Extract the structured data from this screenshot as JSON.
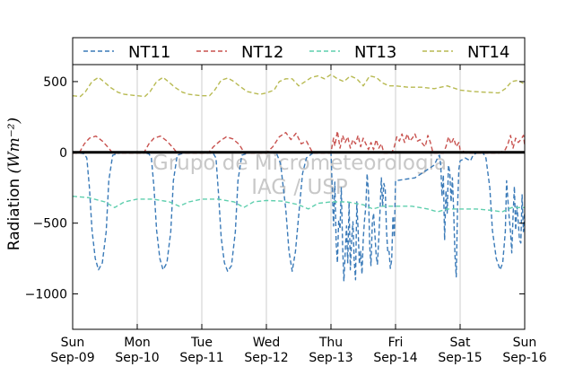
{
  "chart_data": {
    "type": "line",
    "ylabel": "Radiation",
    "ylabel_unit": "(Wm⁻²)",
    "ylim": [
      -1250,
      620
    ],
    "yticks": [
      -1000,
      -500,
      0,
      500
    ],
    "ytick_labels": [
      "−1000",
      "−500",
      "0",
      "500"
    ],
    "xlim": [
      0,
      7
    ],
    "xticks": [
      {
        "day": "Sun",
        "date": "Sep-09"
      },
      {
        "day": "Mon",
        "date": "Sep-10"
      },
      {
        "day": "Tue",
        "date": "Sep-11"
      },
      {
        "day": "Wed",
        "date": "Sep-12"
      },
      {
        "day": "Thu",
        "date": "Sep-13"
      },
      {
        "day": "Fri",
        "date": "Sep-14"
      },
      {
        "day": "Sat",
        "date": "Sep-15"
      },
      {
        "day": "Sun",
        "date": "Sep-16"
      }
    ],
    "grid": "vertical",
    "zero_line": true,
    "legend": {
      "placement": "top",
      "orientation": "horizontal"
    },
    "watermark": [
      "Grupo de Micrometeorologia",
      "IAG / USP"
    ],
    "series": [
      {
        "name": "NT11",
        "color": "#3a7ab8",
        "x": [
          0.0,
          0.08,
          0.18,
          0.22,
          0.26,
          0.3,
          0.35,
          0.4,
          0.46,
          0.52,
          0.56,
          0.62,
          0.72,
          0.8,
          1.0,
          1.08,
          1.18,
          1.22,
          1.26,
          1.3,
          1.35,
          1.4,
          1.46,
          1.52,
          1.56,
          1.62,
          1.72,
          1.8,
          2.0,
          2.08,
          2.18,
          2.22,
          2.26,
          2.3,
          2.35,
          2.4,
          2.46,
          2.52,
          2.56,
          2.62,
          2.72,
          2.8,
          3.0,
          3.08,
          3.16,
          3.22,
          3.3,
          3.35,
          3.4,
          3.45,
          3.52,
          3.56,
          3.62,
          3.72,
          3.8,
          3.9,
          4.0,
          4.04,
          4.06,
          4.08,
          4.1,
          4.12,
          4.14,
          4.16,
          4.18,
          4.2,
          4.22,
          4.24,
          4.26,
          4.28,
          4.3,
          4.32,
          4.34,
          4.36,
          4.38,
          4.4,
          4.42,
          4.44,
          4.46,
          4.48,
          4.5,
          4.52,
          4.54,
          4.56,
          4.58,
          4.6,
          4.62,
          4.64,
          4.66,
          4.68,
          4.7,
          4.72,
          4.74,
          4.76,
          4.78,
          4.8,
          4.82,
          4.84,
          4.86,
          4.88,
          4.9,
          4.92,
          4.94,
          4.96,
          4.98,
          5.0,
          5.3,
          5.6,
          5.65,
          5.66,
          5.68,
          5.7,
          5.72,
          5.74,
          5.76,
          5.78,
          5.8,
          5.82,
          5.84,
          5.86,
          5.88,
          5.9,
          5.92,
          5.94,
          5.96,
          5.98,
          6.0,
          6.08,
          6.16,
          6.2,
          6.25,
          6.3,
          6.35,
          6.4,
          6.46,
          6.5,
          6.56,
          6.62,
          6.66,
          6.7,
          6.72,
          6.74,
          6.76,
          6.78,
          6.8,
          6.82,
          6.84,
          6.86,
          6.88,
          6.9,
          6.92,
          6.94,
          6.96,
          6.98,
          7.0
        ],
        "y": [
          0,
          0,
          -10,
          -40,
          -250,
          -550,
          -750,
          -830,
          -780,
          -560,
          -200,
          -20,
          -5,
          0,
          0,
          0,
          -10,
          -40,
          -250,
          -550,
          -750,
          -830,
          -780,
          -560,
          -200,
          -20,
          -5,
          0,
          0,
          0,
          -10,
          -40,
          -300,
          -600,
          -780,
          -840,
          -800,
          -560,
          -200,
          -20,
          -5,
          0,
          0,
          0,
          -10,
          -80,
          -400,
          -700,
          -840,
          -700,
          -350,
          -150,
          -40,
          -5,
          0,
          0,
          0,
          -520,
          -210,
          -640,
          -780,
          -480,
          -540,
          -250,
          -660,
          -910,
          -720,
          -520,
          -780,
          -350,
          -830,
          -620,
          -490,
          -760,
          -900,
          -350,
          -540,
          -790,
          -700,
          -860,
          -610,
          -480,
          -380,
          -150,
          -280,
          -660,
          -800,
          -500,
          -430,
          -580,
          -730,
          -790,
          -610,
          -410,
          -180,
          -380,
          -220,
          -260,
          -550,
          -710,
          -700,
          -820,
          -760,
          -450,
          -600,
          -200,
          -180,
          -90,
          -40,
          -30,
          -20,
          -90,
          -310,
          -160,
          -620,
          -270,
          -430,
          -90,
          -140,
          -350,
          -180,
          -410,
          -720,
          -880,
          -390,
          -120,
          -60,
          -40,
          -60,
          -20,
          -5,
          0,
          0,
          -40,
          -250,
          -550,
          -750,
          -830,
          -780,
          -560,
          -200,
          -340,
          -460,
          -560,
          -710,
          -450,
          -240,
          -550,
          -380,
          -490,
          -620,
          -640,
          -300,
          -560,
          -420
        ]
      },
      {
        "name": "NT12",
        "color": "#c8524f",
        "x": [
          0.0,
          0.1,
          0.18,
          0.26,
          0.36,
          0.46,
          0.56,
          0.62,
          0.72,
          0.8,
          1.0,
          1.1,
          1.18,
          1.26,
          1.36,
          1.46,
          1.56,
          1.62,
          1.72,
          1.8,
          2.0,
          2.1,
          2.18,
          2.28,
          2.38,
          2.48,
          2.58,
          2.66,
          2.72,
          2.8,
          3.0,
          3.1,
          3.2,
          3.3,
          3.38,
          3.46,
          3.54,
          3.62,
          3.72,
          3.8,
          3.9,
          4.0,
          4.02,
          4.04,
          4.06,
          4.1,
          4.14,
          4.18,
          4.22,
          4.26,
          4.3,
          4.34,
          4.38,
          4.42,
          4.46,
          4.5,
          4.54,
          4.58,
          4.62,
          4.66,
          4.7,
          4.74,
          4.78,
          4.82,
          4.86,
          4.9,
          4.94,
          4.98,
          5.02,
          5.06,
          5.1,
          5.14,
          5.18,
          5.22,
          5.26,
          5.3,
          5.34,
          5.38,
          5.42,
          5.46,
          5.5,
          5.54,
          5.58,
          5.62,
          5.66,
          5.7,
          5.74,
          5.78,
          5.82,
          5.86,
          5.9,
          5.94,
          5.98,
          6.0,
          6.1,
          6.2,
          6.3,
          6.4,
          6.5,
          6.6,
          6.7,
          6.74,
          6.78,
          6.82,
          6.86,
          6.9,
          6.94,
          6.98,
          7.0
        ],
        "y": [
          -5,
          -5,
          60,
          100,
          115,
          80,
          30,
          -5,
          -5,
          -5,
          -5,
          -5,
          60,
          100,
          115,
          80,
          30,
          -5,
          -5,
          -5,
          -5,
          -5,
          40,
          80,
          110,
          95,
          55,
          -5,
          -5,
          -5,
          -5,
          40,
          110,
          140,
          90,
          135,
          60,
          80,
          -5,
          -5,
          -5,
          -5,
          50,
          100,
          45,
          150,
          30,
          120,
          70,
          110,
          30,
          90,
          60,
          120,
          40,
          100,
          60,
          20,
          70,
          20,
          90,
          30,
          60,
          -5,
          -5,
          -5,
          -5,
          40,
          110,
          80,
          130,
          70,
          130,
          80,
          100,
          130,
          80,
          90,
          60,
          40,
          120,
          70,
          -5,
          -5,
          -5,
          -5,
          -5,
          40,
          110,
          60,
          100,
          40,
          70,
          20,
          -5,
          -5,
          -5,
          -5,
          -5,
          -5,
          20,
          60,
          120,
          30,
          100,
          70,
          90,
          120,
          50
        ]
      },
      {
        "name": "NT13",
        "color": "#5fcfae",
        "x": [
          0.0,
          0.25,
          0.5,
          0.65,
          0.8,
          1.0,
          1.25,
          1.5,
          1.65,
          1.8,
          2.0,
          2.25,
          2.5,
          2.65,
          2.8,
          3.0,
          3.25,
          3.5,
          3.65,
          3.8,
          4.0,
          4.25,
          4.5,
          4.65,
          4.8,
          5.0,
          5.25,
          5.5,
          5.65,
          5.8,
          6.0,
          6.25,
          6.5,
          6.65,
          6.8,
          7.0
        ],
        "y": [
          -310,
          -320,
          -350,
          -390,
          -350,
          -330,
          -330,
          -350,
          -380,
          -350,
          -330,
          -330,
          -350,
          -390,
          -350,
          -340,
          -345,
          -370,
          -400,
          -360,
          -350,
          -350,
          -370,
          -400,
          -380,
          -380,
          -380,
          -400,
          -420,
          -400,
          -400,
          -400,
          -410,
          -420,
          -390,
          -390
        ]
      },
      {
        "name": "NT14",
        "color": "#b8ba52",
        "x": [
          0.0,
          0.12,
          0.2,
          0.3,
          0.4,
          0.48,
          0.58,
          0.7,
          0.8,
          0.9,
          1.0,
          1.12,
          1.2,
          1.3,
          1.4,
          1.48,
          1.58,
          1.7,
          1.8,
          1.9,
          2.0,
          2.12,
          2.2,
          2.3,
          2.4,
          2.48,
          2.58,
          2.7,
          2.8,
          2.9,
          3.0,
          3.12,
          3.2,
          3.3,
          3.4,
          3.5,
          3.6,
          3.7,
          3.8,
          3.9,
          4.0,
          4.1,
          4.2,
          4.3,
          4.4,
          4.5,
          4.6,
          4.7,
          4.8,
          4.9,
          5.0,
          5.2,
          5.4,
          5.6,
          5.8,
          6.0,
          6.2,
          6.4,
          6.6,
          6.7,
          6.8,
          6.9,
          7.0
        ],
        "y": [
          400,
          395,
          430,
          500,
          530,
          500,
          460,
          425,
          410,
          405,
          400,
          395,
          430,
          500,
          530,
          500,
          460,
          425,
          410,
          405,
          400,
          400,
          440,
          510,
          525,
          505,
          470,
          430,
          420,
          410,
          420,
          440,
          500,
          520,
          520,
          470,
          500,
          530,
          540,
          520,
          550,
          520,
          500,
          540,
          520,
          470,
          540,
          530,
          490,
          470,
          470,
          460,
          460,
          450,
          470,
          440,
          430,
          425,
          420,
          450,
          500,
          510,
          480
        ]
      }
    ]
  }
}
